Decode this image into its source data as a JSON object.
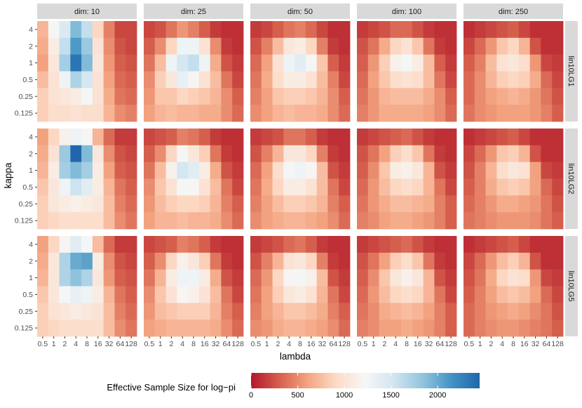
{
  "chart_data": {
    "type": "heatmap",
    "facet_cols": [
      "dim: 10",
      "dim: 25",
      "dim: 50",
      "dim: 100",
      "dim: 250"
    ],
    "facet_rows": [
      "lin10LG1",
      "lin10LG2",
      "lin10LG5"
    ],
    "x_categories": [
      "0.5",
      "1",
      "2",
      "4",
      "8",
      "16",
      "32",
      "64",
      "128"
    ],
    "y_categories": [
      "4",
      "2",
      "1",
      "0.5",
      "0.25",
      "0.125"
    ],
    "xlabel": "lambda",
    "ylabel": "kappa",
    "legend": {
      "title": "Effective Sample Size for log−pi",
      "ticks": [
        "0",
        "500",
        "1000",
        "1500",
        "2000"
      ],
      "range": [
        0,
        2450
      ],
      "colors": [
        "#B2182B",
        "#D6604D",
        "#F4A582",
        "#FDDBC7",
        "#F7F7F7",
        "#D1E5F0",
        "#92C5DE",
        "#4393C3",
        "#2166AC"
      ],
      "placement": "bottom"
    },
    "panels": [
      {
        "row": "lin10LG1",
        "col": "dim: 10",
        "values": [
          [
            700,
            1250,
            1450,
            1900,
            1600,
            900,
            450,
            200,
            200
          ],
          [
            650,
            1100,
            1600,
            2100,
            1800,
            1000,
            500,
            250,
            200
          ],
          [
            600,
            1050,
            1750,
            2350,
            1900,
            1050,
            550,
            300,
            250
          ],
          [
            750,
            1000,
            1300,
            1700,
            1500,
            1000,
            600,
            350,
            300
          ],
          [
            850,
            1000,
            1050,
            1100,
            1250,
            1000,
            650,
            400,
            350
          ],
          [
            850,
            950,
            950,
            1000,
            950,
            950,
            700,
            500,
            450
          ]
        ]
      },
      {
        "row": "lin10LG1",
        "col": "dim: 25",
        "values": [
          [
            200,
            250,
            400,
            550,
            450,
            300,
            150,
            100,
            100
          ],
          [
            300,
            500,
            900,
            1300,
            1300,
            1000,
            500,
            150,
            100
          ],
          [
            400,
            750,
            1300,
            1500,
            1600,
            1300,
            650,
            250,
            150
          ],
          [
            500,
            850,
            1050,
            1350,
            1200,
            1000,
            750,
            400,
            200
          ],
          [
            550,
            800,
            800,
            900,
            850,
            800,
            700,
            500,
            300
          ],
          [
            600,
            700,
            750,
            700,
            700,
            650,
            650,
            500,
            350
          ]
        ]
      },
      {
        "row": "lin10LG1",
        "col": "dim: 50",
        "values": [
          [
            150,
            200,
            300,
            400,
            450,
            350,
            200,
            100,
            100
          ],
          [
            250,
            450,
            750,
            1050,
            1100,
            900,
            450,
            150,
            100
          ],
          [
            350,
            600,
            1000,
            1300,
            1400,
            1250,
            800,
            300,
            150
          ],
          [
            400,
            650,
            950,
            1100,
            1100,
            1000,
            750,
            450,
            200
          ],
          [
            450,
            600,
            800,
            850,
            850,
            800,
            700,
            500,
            300
          ],
          [
            500,
            600,
            700,
            750,
            700,
            700,
            650,
            500,
            350
          ]
        ]
      },
      {
        "row": "lin10LG1",
        "col": "dim: 100",
        "values": [
          [
            150,
            200,
            250,
            350,
            350,
            250,
            150,
            100,
            100
          ],
          [
            250,
            400,
            650,
            900,
            1000,
            800,
            400,
            150,
            100
          ],
          [
            300,
            550,
            850,
            1150,
            1250,
            1100,
            750,
            300,
            150
          ],
          [
            350,
            600,
            800,
            950,
            1000,
            950,
            750,
            400,
            200
          ],
          [
            400,
            550,
            700,
            750,
            750,
            750,
            650,
            500,
            300
          ],
          [
            450,
            550,
            650,
            650,
            650,
            650,
            600,
            500,
            350
          ]
        ]
      },
      {
        "row": "lin10LG1",
        "col": "dim: 250",
        "values": [
          [
            100,
            150,
            200,
            250,
            300,
            200,
            100,
            100,
            100
          ],
          [
            200,
            350,
            550,
            800,
            900,
            700,
            250,
            100,
            100
          ],
          [
            300,
            450,
            750,
            1000,
            1050,
            950,
            550,
            200,
            150
          ],
          [
            350,
            500,
            700,
            850,
            900,
            850,
            650,
            350,
            200
          ],
          [
            350,
            500,
            600,
            650,
            700,
            650,
            550,
            400,
            250
          ],
          [
            400,
            500,
            550,
            600,
            600,
            600,
            550,
            450,
            300
          ]
        ]
      },
      {
        "row": "lin10LG2",
        "col": "dim: 10",
        "values": [
          [
            600,
            900,
            1150,
            1300,
            1200,
            700,
            350,
            150,
            150
          ],
          [
            650,
            1000,
            1800,
            2450,
            1900,
            1050,
            500,
            250,
            200
          ],
          [
            700,
            1100,
            1750,
            1900,
            1750,
            1100,
            600,
            300,
            250
          ],
          [
            800,
            1050,
            1300,
            1550,
            1400,
            1100,
            700,
            400,
            300
          ],
          [
            850,
            1050,
            1100,
            1150,
            1100,
            1050,
            750,
            450,
            350
          ],
          [
            850,
            900,
            950,
            950,
            950,
            950,
            750,
            500,
            400
          ]
        ]
      },
      {
        "row": "lin10LG2",
        "col": "dim: 25",
        "values": [
          [
            200,
            250,
            300,
            450,
            400,
            300,
            150,
            100,
            100
          ],
          [
            300,
            500,
            900,
            1250,
            1050,
            850,
            400,
            150,
            100
          ],
          [
            400,
            750,
            1150,
            1500,
            1400,
            1100,
            650,
            250,
            150
          ],
          [
            500,
            800,
            1000,
            1250,
            1200,
            1000,
            750,
            400,
            200
          ],
          [
            550,
            750,
            850,
            900,
            900,
            850,
            700,
            450,
            300
          ],
          [
            600,
            700,
            700,
            750,
            700,
            700,
            650,
            500,
            350
          ]
        ]
      },
      {
        "row": "lin10LG2",
        "col": "dim: 50",
        "values": [
          [
            150,
            200,
            250,
            400,
            400,
            300,
            150,
            100,
            100
          ],
          [
            250,
            450,
            700,
            1050,
            1050,
            900,
            450,
            150,
            100
          ],
          [
            350,
            600,
            950,
            1250,
            1300,
            1200,
            750,
            250,
            150
          ],
          [
            400,
            650,
            900,
            1100,
            1100,
            1000,
            750,
            400,
            200
          ],
          [
            450,
            600,
            750,
            850,
            850,
            800,
            700,
            450,
            300
          ],
          [
            500,
            600,
            650,
            700,
            700,
            650,
            600,
            500,
            350
          ]
        ]
      },
      {
        "row": "lin10LG2",
        "col": "dim: 100",
        "values": [
          [
            150,
            200,
            250,
            300,
            350,
            250,
            150,
            100,
            100
          ],
          [
            250,
            400,
            600,
            850,
            950,
            800,
            400,
            150,
            100
          ],
          [
            300,
            500,
            800,
            1100,
            1150,
            1050,
            700,
            250,
            150
          ],
          [
            350,
            550,
            750,
            900,
            950,
            900,
            700,
            400,
            200
          ],
          [
            400,
            550,
            650,
            750,
            750,
            700,
            650,
            450,
            300
          ],
          [
            450,
            500,
            600,
            650,
            650,
            600,
            550,
            450,
            300
          ]
        ]
      },
      {
        "row": "lin10LG2",
        "col": "dim: 250",
        "values": [
          [
            100,
            150,
            200,
            250,
            300,
            200,
            100,
            100,
            100
          ],
          [
            200,
            350,
            550,
            800,
            850,
            700,
            250,
            100,
            100
          ],
          [
            250,
            450,
            700,
            950,
            1050,
            1000,
            600,
            200,
            150
          ],
          [
            300,
            450,
            650,
            800,
            850,
            800,
            600,
            350,
            200
          ],
          [
            350,
            450,
            550,
            650,
            650,
            600,
            550,
            400,
            250
          ],
          [
            400,
            450,
            500,
            550,
            550,
            550,
            500,
            400,
            300
          ]
        ]
      },
      {
        "row": "lin10LG5",
        "col": "dim: 10",
        "values": [
          [
            600,
            900,
            1200,
            1400,
            1250,
            750,
            350,
            150,
            150
          ],
          [
            650,
            1050,
            1700,
            2000,
            2050,
            1100,
            500,
            250,
            200
          ],
          [
            700,
            1050,
            1700,
            1850,
            1700,
            1050,
            550,
            300,
            250
          ],
          [
            800,
            1050,
            1250,
            1350,
            1300,
            1100,
            700,
            400,
            300
          ],
          [
            850,
            1000,
            1050,
            1100,
            1050,
            1000,
            750,
            450,
            350
          ],
          [
            850,
            900,
            950,
            950,
            950,
            950,
            750,
            500,
            400
          ]
        ]
      },
      {
        "row": "lin10LG5",
        "col": "dim: 25",
        "values": [
          [
            200,
            250,
            300,
            450,
            400,
            300,
            150,
            100,
            100
          ],
          [
            300,
            500,
            900,
            1150,
            1050,
            850,
            400,
            150,
            100
          ],
          [
            400,
            700,
            1100,
            1300,
            1300,
            1100,
            650,
            250,
            150
          ],
          [
            500,
            800,
            1000,
            1200,
            1150,
            1000,
            750,
            400,
            200
          ],
          [
            550,
            750,
            800,
            850,
            850,
            850,
            700,
            450,
            300
          ],
          [
            600,
            650,
            700,
            700,
            700,
            700,
            650,
            500,
            350
          ]
        ]
      },
      {
        "row": "lin10LG5",
        "col": "dim: 50",
        "values": [
          [
            150,
            200,
            250,
            350,
            400,
            300,
            150,
            100,
            100
          ],
          [
            250,
            450,
            700,
            1000,
            1050,
            900,
            450,
            150,
            100
          ],
          [
            350,
            550,
            900,
            1200,
            1250,
            1150,
            750,
            250,
            150
          ],
          [
            400,
            600,
            850,
            1050,
            1100,
            1000,
            700,
            400,
            200
          ],
          [
            450,
            600,
            700,
            800,
            800,
            750,
            650,
            450,
            300
          ],
          [
            500,
            550,
            650,
            700,
            700,
            650,
            600,
            500,
            350
          ]
        ]
      },
      {
        "row": "lin10LG5",
        "col": "dim: 100",
        "values": [
          [
            150,
            200,
            250,
            300,
            350,
            250,
            150,
            100,
            100
          ],
          [
            250,
            400,
            600,
            850,
            950,
            800,
            400,
            150,
            100
          ],
          [
            300,
            500,
            800,
            1050,
            1150,
            1050,
            700,
            250,
            150
          ],
          [
            350,
            550,
            750,
            900,
            950,
            900,
            700,
            400,
            200
          ],
          [
            400,
            500,
            650,
            700,
            750,
            700,
            600,
            450,
            300
          ],
          [
            450,
            500,
            600,
            600,
            650,
            600,
            550,
            450,
            300
          ]
        ]
      },
      {
        "row": "lin10LG5",
        "col": "dim: 250",
        "values": [
          [
            100,
            150,
            200,
            250,
            300,
            200,
            100,
            100,
            100
          ],
          [
            200,
            350,
            550,
            750,
            850,
            700,
            250,
            100,
            100
          ],
          [
            250,
            400,
            650,
            900,
            1000,
            950,
            550,
            200,
            150
          ],
          [
            300,
            450,
            600,
            750,
            800,
            750,
            600,
            350,
            200
          ],
          [
            350,
            450,
            550,
            600,
            650,
            600,
            500,
            400,
            250
          ],
          [
            350,
            450,
            500,
            550,
            550,
            500,
            450,
            400,
            300
          ]
        ]
      }
    ]
  }
}
